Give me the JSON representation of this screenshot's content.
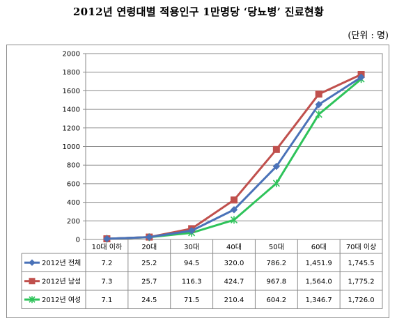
{
  "title": "2012년 연령대별 적용인구 1만명당 ‘당뇨병’ 진료현황",
  "unit": "(단위 :   명)",
  "chart_data": {
    "type": "line",
    "title": "2012년 연령대별 적용인구 1만명당 ‘당뇨병’ 진료현황",
    "categories": [
      "10대 이하",
      "20대",
      "30대",
      "40대",
      "50대",
      "60대",
      "70대 이상"
    ],
    "ylim": [
      0,
      2000
    ],
    "y_ticks": [
      0,
      200,
      400,
      600,
      800,
      1000,
      1200,
      1400,
      1600,
      1800,
      2000
    ],
    "y_tick_labels": [
      "0",
      "200",
      "400",
      "600",
      "800",
      "1000",
      "1200",
      "1400",
      "1600",
      "1800",
      "2000"
    ],
    "grid": true,
    "legend": "data-table-left",
    "series": [
      {
        "name": "2012년 전체",
        "color": "#4a72b8",
        "marker": "diamond",
        "values": [
          7.2,
          25.2,
          94.5,
          320.0,
          786.2,
          1451.9,
          1745.5
        ],
        "labels": [
          "7.2",
          "25.2",
          "94.5",
          "320.0",
          "786.2",
          "1,451.9",
          "1,745.5"
        ]
      },
      {
        "name": "2012년 남성",
        "color": "#c0504d",
        "marker": "square",
        "values": [
          7.3,
          25.7,
          116.3,
          424.7,
          967.8,
          1564.0,
          1775.2
        ],
        "labels": [
          "7.3",
          "25.7",
          "116.3",
          "424.7",
          "967.8",
          "1,564.0",
          "1,775.2"
        ]
      },
      {
        "name": "2012년 여성",
        "color": "#2ec35a",
        "marker": "x",
        "values": [
          7.1,
          24.5,
          71.5,
          210.4,
          604.2,
          1346.7,
          1726.0
        ],
        "labels": [
          "7.1",
          "24.5",
          "71.5",
          "210.4",
          "604.2",
          "1,346.7",
          "1,726.0"
        ]
      }
    ]
  }
}
